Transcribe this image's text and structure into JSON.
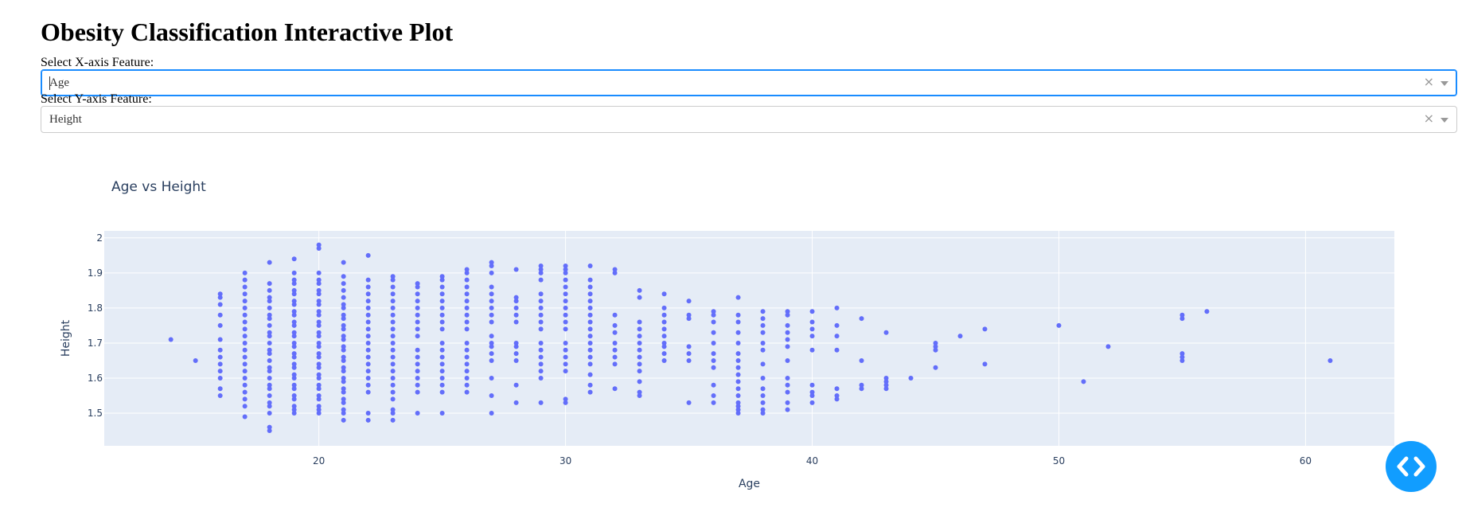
{
  "page": {
    "title": "Obesity Classification Interactive Plot"
  },
  "controls": {
    "x_label": "Select X-axis Feature:",
    "x_value": "Age",
    "y_label": "Select Y-axis Feature:",
    "y_value": "Height",
    "clear_glyph": "×"
  },
  "icons": {
    "debug_button": "code-brackets-icon"
  },
  "colors": {
    "marker": "#636efa",
    "plot_bg": "#e5ecf6",
    "focus": "#1a8cff",
    "fab": "#119dff"
  },
  "chart_data": {
    "type": "scatter",
    "title": "Age vs Height",
    "xlabel": "Age",
    "ylabel": "Height",
    "xlim": [
      11.3,
      63.6
    ],
    "ylim": [
      1.407,
      2.02
    ],
    "xticks": [
      20,
      30,
      40,
      50,
      60
    ],
    "yticks": [
      1.5,
      1.6,
      1.7,
      1.8,
      1.9,
      2
    ],
    "grid": true,
    "legend": "none",
    "columns": [
      {
        "x": 14,
        "y": [
          1.71
        ]
      },
      {
        "x": 15,
        "y": [
          1.65
        ]
      },
      {
        "x": 16,
        "y": [
          1.55,
          1.57,
          1.6,
          1.62,
          1.64,
          1.66,
          1.68,
          1.71,
          1.75,
          1.78,
          1.81,
          1.83,
          1.84
        ]
      },
      {
        "x": 17,
        "y": [
          1.49,
          1.52,
          1.54,
          1.56,
          1.58,
          1.6,
          1.62,
          1.64,
          1.66,
          1.68,
          1.7,
          1.72,
          1.74,
          1.76,
          1.78,
          1.8,
          1.82,
          1.84,
          1.86,
          1.88,
          1.9
        ]
      },
      {
        "x": 18,
        "y": [
          1.45,
          1.46,
          1.5,
          1.52,
          1.53,
          1.55,
          1.57,
          1.58,
          1.6,
          1.62,
          1.63,
          1.65,
          1.67,
          1.68,
          1.7,
          1.72,
          1.73,
          1.75,
          1.77,
          1.78,
          1.8,
          1.82,
          1.83,
          1.85,
          1.87,
          1.93
        ]
      },
      {
        "x": 19,
        "y": [
          1.5,
          1.51,
          1.52,
          1.54,
          1.55,
          1.57,
          1.58,
          1.6,
          1.61,
          1.63,
          1.64,
          1.66,
          1.67,
          1.69,
          1.7,
          1.72,
          1.73,
          1.75,
          1.76,
          1.78,
          1.79,
          1.81,
          1.82,
          1.84,
          1.85,
          1.87,
          1.88,
          1.9,
          1.94
        ]
      },
      {
        "x": 20,
        "y": [
          1.5,
          1.51,
          1.52,
          1.54,
          1.55,
          1.57,
          1.58,
          1.6,
          1.61,
          1.63,
          1.64,
          1.66,
          1.67,
          1.69,
          1.7,
          1.72,
          1.73,
          1.75,
          1.76,
          1.78,
          1.79,
          1.81,
          1.82,
          1.84,
          1.85,
          1.87,
          1.88,
          1.9,
          1.97,
          1.98
        ]
      },
      {
        "x": 21,
        "y": [
          1.48,
          1.5,
          1.51,
          1.53,
          1.54,
          1.56,
          1.57,
          1.59,
          1.6,
          1.62,
          1.63,
          1.65,
          1.66,
          1.68,
          1.69,
          1.71,
          1.72,
          1.74,
          1.75,
          1.77,
          1.78,
          1.8,
          1.81,
          1.83,
          1.85,
          1.87,
          1.89,
          1.93
        ]
      },
      {
        "x": 22,
        "y": [
          1.48,
          1.5,
          1.56,
          1.58,
          1.6,
          1.62,
          1.64,
          1.66,
          1.68,
          1.7,
          1.72,
          1.74,
          1.76,
          1.78,
          1.8,
          1.82,
          1.84,
          1.86,
          1.88,
          1.95
        ]
      },
      {
        "x": 23,
        "y": [
          1.48,
          1.5,
          1.51,
          1.54,
          1.56,
          1.58,
          1.6,
          1.62,
          1.64,
          1.66,
          1.68,
          1.7,
          1.72,
          1.74,
          1.76,
          1.78,
          1.8,
          1.82,
          1.84,
          1.86,
          1.88,
          1.89
        ]
      },
      {
        "x": 24,
        "y": [
          1.5,
          1.56,
          1.58,
          1.6,
          1.62,
          1.64,
          1.66,
          1.68,
          1.72,
          1.74,
          1.76,
          1.78,
          1.8,
          1.82,
          1.84,
          1.86,
          1.87
        ]
      },
      {
        "x": 25,
        "y": [
          1.5,
          1.56,
          1.58,
          1.6,
          1.62,
          1.64,
          1.66,
          1.68,
          1.7,
          1.74,
          1.76,
          1.78,
          1.8,
          1.82,
          1.84,
          1.86,
          1.88,
          1.89
        ]
      },
      {
        "x": 26,
        "y": [
          1.56,
          1.58,
          1.6,
          1.62,
          1.64,
          1.66,
          1.68,
          1.7,
          1.74,
          1.76,
          1.78,
          1.8,
          1.82,
          1.84,
          1.86,
          1.88,
          1.9,
          1.91
        ]
      },
      {
        "x": 27,
        "y": [
          1.5,
          1.55,
          1.6,
          1.65,
          1.67,
          1.69,
          1.7,
          1.72,
          1.76,
          1.78,
          1.8,
          1.82,
          1.84,
          1.86,
          1.9,
          1.92,
          1.93
        ]
      },
      {
        "x": 28,
        "y": [
          1.53,
          1.58,
          1.65,
          1.67,
          1.69,
          1.7,
          1.76,
          1.78,
          1.8,
          1.82,
          1.83,
          1.91
        ]
      },
      {
        "x": 29,
        "y": [
          1.53,
          1.6,
          1.62,
          1.64,
          1.66,
          1.68,
          1.7,
          1.74,
          1.76,
          1.78,
          1.8,
          1.82,
          1.84,
          1.88,
          1.9,
          1.91,
          1.92
        ]
      },
      {
        "x": 30,
        "y": [
          1.53,
          1.54,
          1.62,
          1.64,
          1.66,
          1.68,
          1.7,
          1.74,
          1.76,
          1.78,
          1.8,
          1.82,
          1.84,
          1.86,
          1.88,
          1.9,
          1.91,
          1.92
        ]
      },
      {
        "x": 31,
        "y": [
          1.56,
          1.58,
          1.61,
          1.64,
          1.66,
          1.68,
          1.7,
          1.72,
          1.74,
          1.76,
          1.78,
          1.8,
          1.82,
          1.84,
          1.86,
          1.88,
          1.92
        ]
      },
      {
        "x": 32,
        "y": [
          1.57,
          1.64,
          1.66,
          1.68,
          1.7,
          1.73,
          1.75,
          1.78,
          1.9,
          1.91
        ]
      },
      {
        "x": 33,
        "y": [
          1.55,
          1.56,
          1.59,
          1.62,
          1.64,
          1.66,
          1.68,
          1.7,
          1.72,
          1.74,
          1.76,
          1.83,
          1.85
        ]
      },
      {
        "x": 34,
        "y": [
          1.65,
          1.67,
          1.69,
          1.7,
          1.72,
          1.74,
          1.76,
          1.78,
          1.8,
          1.84
        ]
      },
      {
        "x": 35,
        "y": [
          1.53,
          1.65,
          1.67,
          1.69,
          1.77,
          1.78,
          1.82
        ]
      },
      {
        "x": 36,
        "y": [
          1.53,
          1.55,
          1.58,
          1.63,
          1.65,
          1.67,
          1.7,
          1.73,
          1.76,
          1.78,
          1.79
        ]
      },
      {
        "x": 37,
        "y": [
          1.5,
          1.51,
          1.52,
          1.53,
          1.55,
          1.57,
          1.59,
          1.61,
          1.63,
          1.65,
          1.67,
          1.7,
          1.73,
          1.76,
          1.78,
          1.83
        ]
      },
      {
        "x": 38,
        "y": [
          1.5,
          1.51,
          1.53,
          1.55,
          1.57,
          1.6,
          1.64,
          1.68,
          1.7,
          1.73,
          1.75,
          1.77,
          1.79
        ]
      },
      {
        "x": 39,
        "y": [
          1.51,
          1.53,
          1.56,
          1.58,
          1.6,
          1.65,
          1.69,
          1.71,
          1.73,
          1.75,
          1.78,
          1.79
        ]
      },
      {
        "x": 40,
        "y": [
          1.53,
          1.55,
          1.56,
          1.58,
          1.68,
          1.72,
          1.74,
          1.76,
          1.79
        ]
      },
      {
        "x": 41,
        "y": [
          1.54,
          1.55,
          1.57,
          1.68,
          1.72,
          1.75,
          1.8
        ]
      },
      {
        "x": 42,
        "y": [
          1.57,
          1.58,
          1.65,
          1.77
        ]
      },
      {
        "x": 43,
        "y": [
          1.57,
          1.58,
          1.59,
          1.6,
          1.73
        ]
      },
      {
        "x": 44,
        "y": [
          1.6
        ]
      },
      {
        "x": 45,
        "y": [
          1.63,
          1.68,
          1.69,
          1.7
        ]
      },
      {
        "x": 46,
        "y": [
          1.72
        ]
      },
      {
        "x": 47,
        "y": [
          1.64,
          1.74
        ]
      },
      {
        "x": 50,
        "y": [
          1.75
        ]
      },
      {
        "x": 51,
        "y": [
          1.59
        ]
      },
      {
        "x": 52,
        "y": [
          1.69
        ]
      },
      {
        "x": 55,
        "y": [
          1.65,
          1.66,
          1.67,
          1.77,
          1.78
        ]
      },
      {
        "x": 56,
        "y": [
          1.79
        ]
      },
      {
        "x": 61,
        "y": [
          1.65
        ]
      }
    ]
  }
}
